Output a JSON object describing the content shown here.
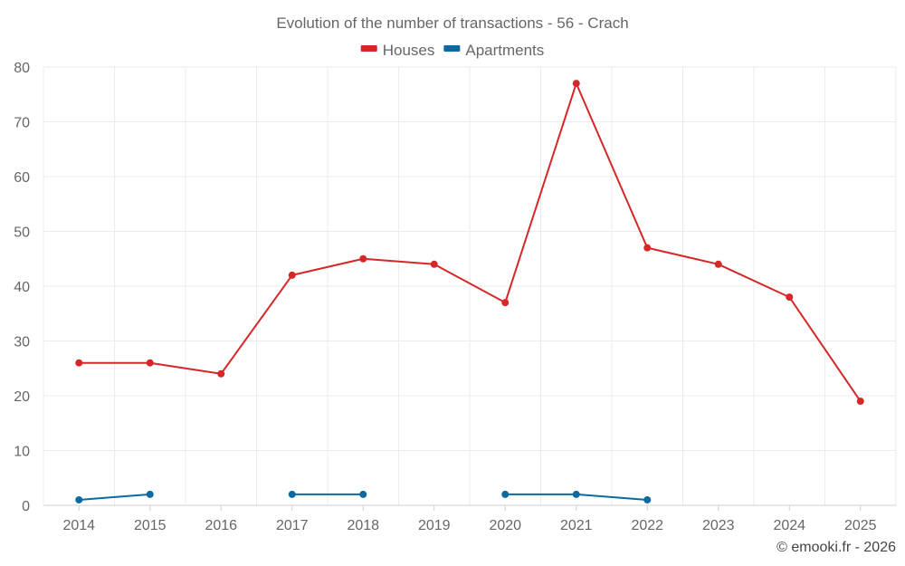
{
  "chart_data": {
    "type": "line",
    "title": "Evolution of the number of transactions - 56 - Crach",
    "categories": [
      "2014",
      "2015",
      "2016",
      "2017",
      "2018",
      "2019",
      "2020",
      "2021",
      "2022",
      "2023",
      "2024",
      "2025"
    ],
    "ylim": [
      0,
      80
    ],
    "yticks": [
      0,
      10,
      20,
      30,
      40,
      50,
      60,
      70,
      80
    ],
    "grid": true,
    "legend_position": "top-center",
    "series": [
      {
        "name": "Houses",
        "color": "#d62728",
        "values": [
          26,
          26,
          24,
          42,
          45,
          44,
          37,
          77,
          47,
          44,
          38,
          19
        ]
      },
      {
        "name": "Apartments",
        "color": "#0a6aa1",
        "values": [
          1,
          2,
          null,
          2,
          2,
          null,
          2,
          2,
          1,
          null,
          null,
          null
        ]
      }
    ]
  },
  "credit": "© emooki.fr - 2026"
}
